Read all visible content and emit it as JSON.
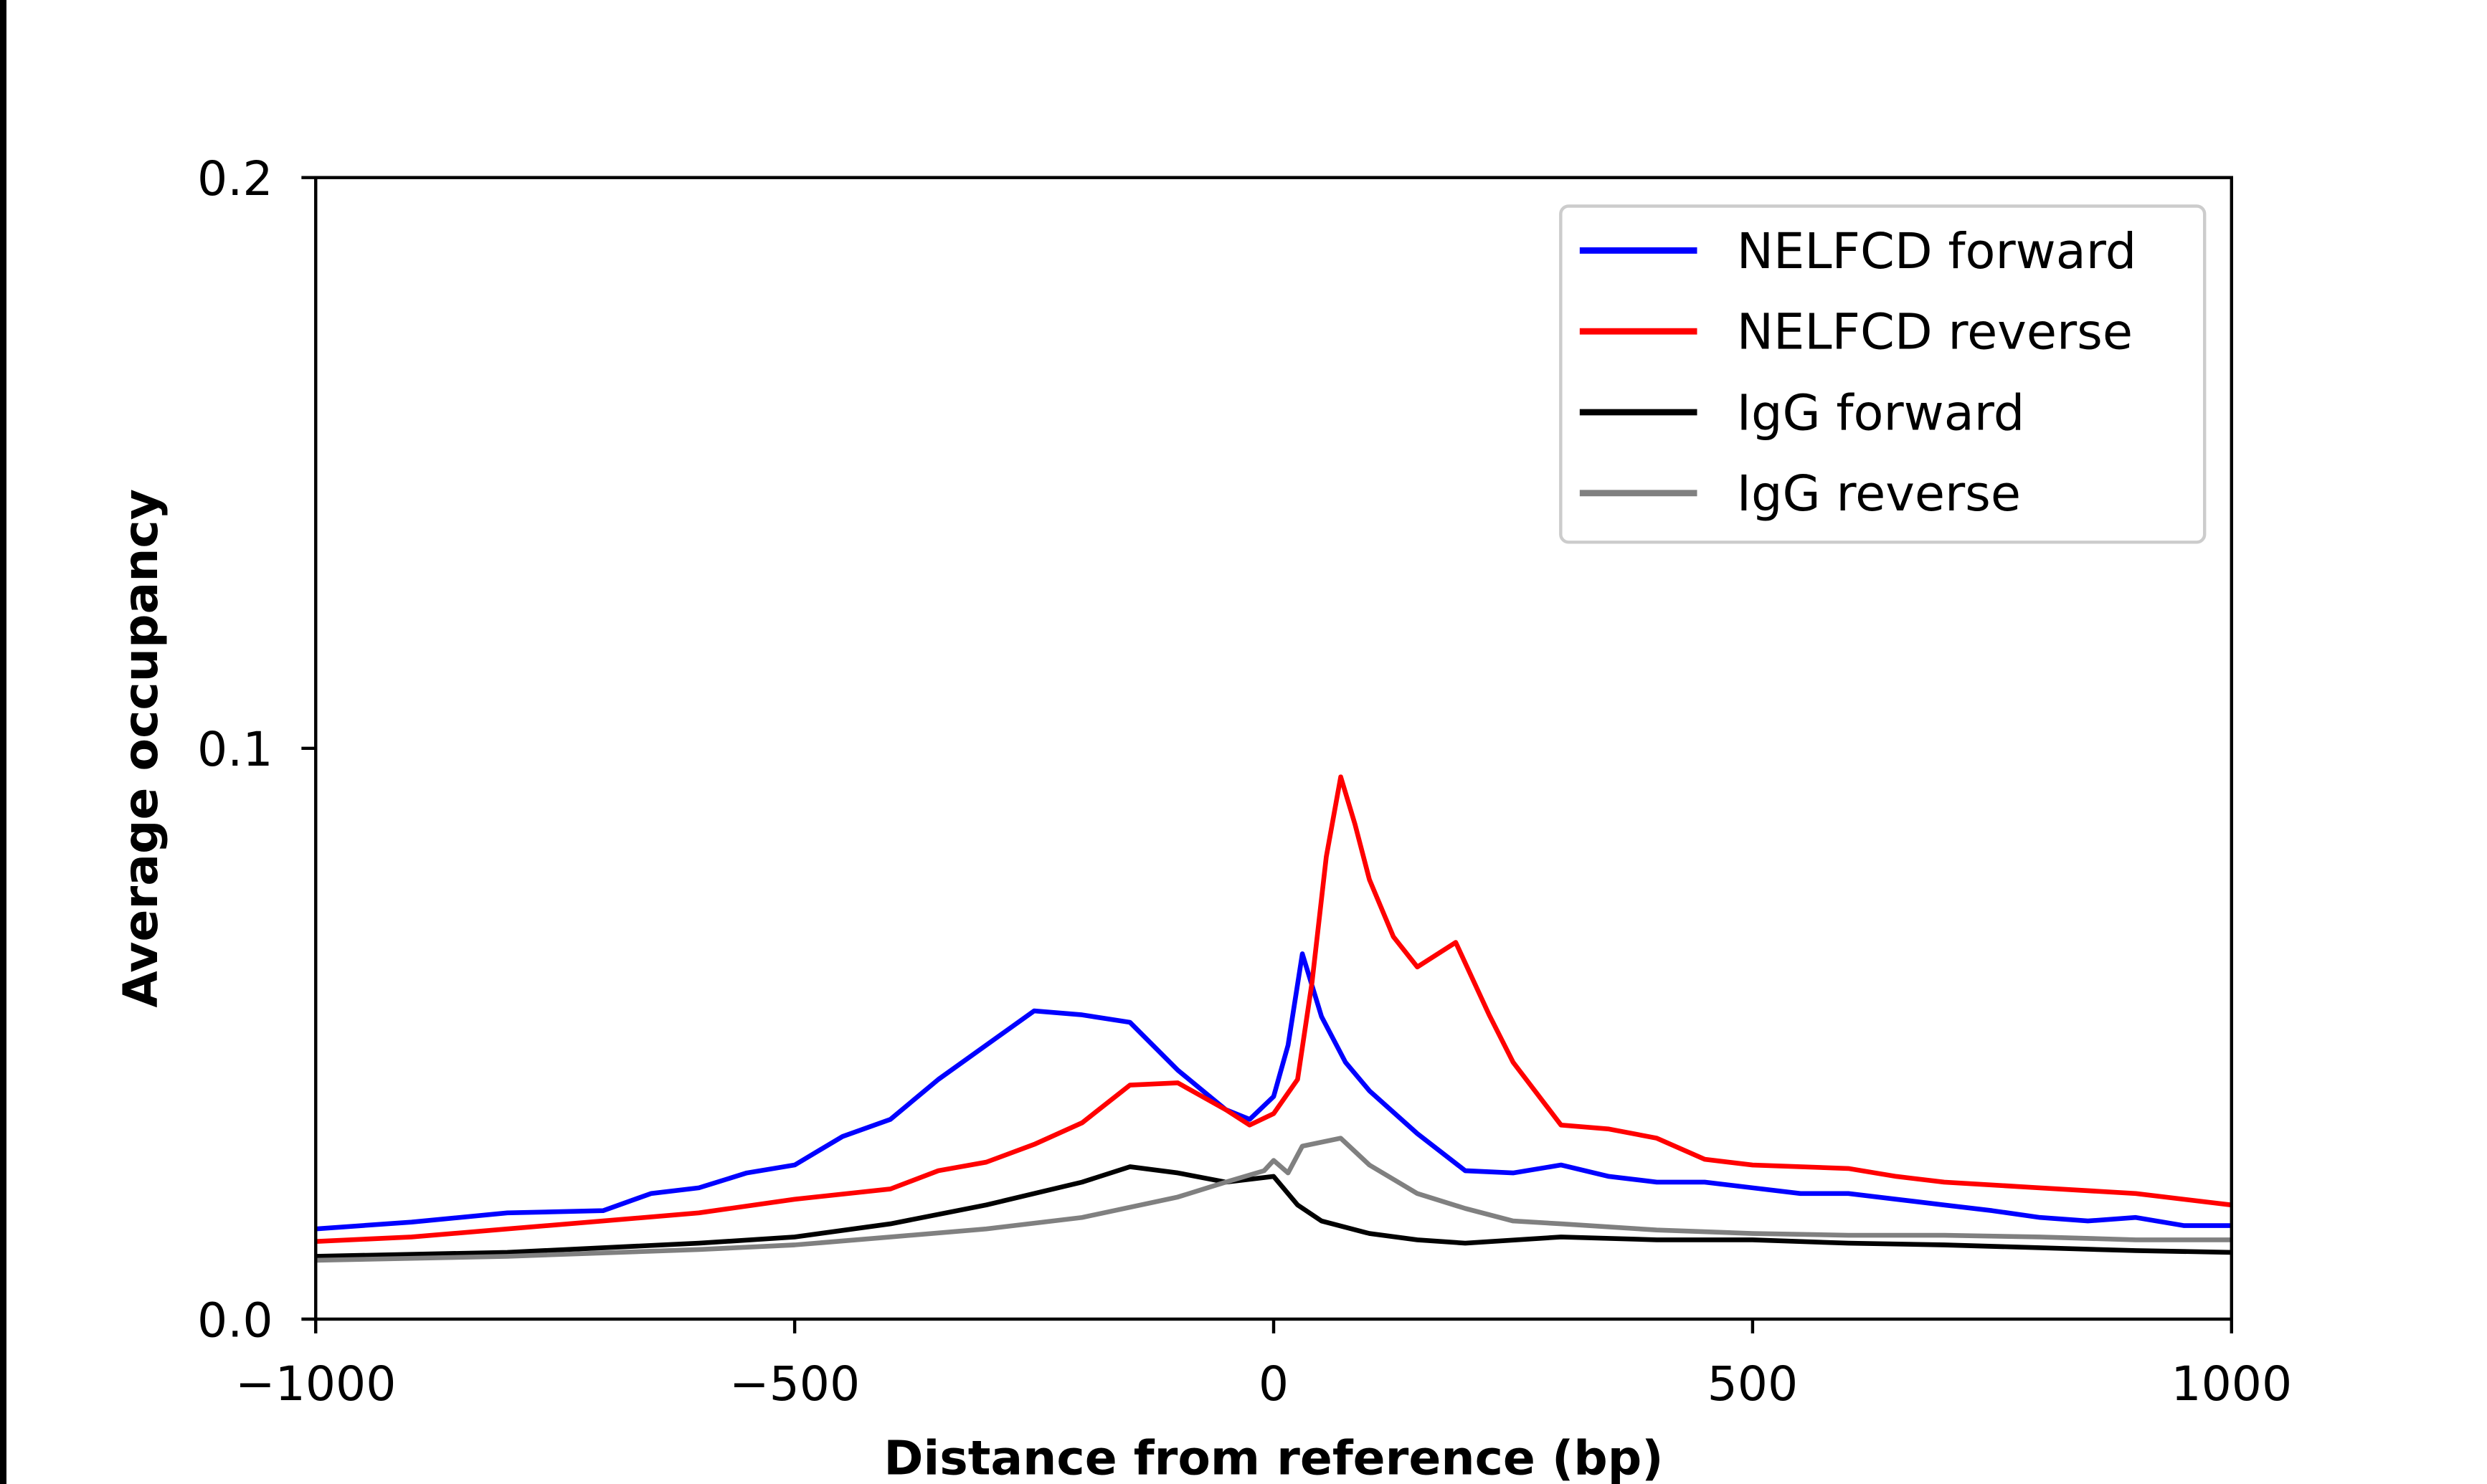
{
  "chart_data": {
    "type": "line",
    "title": "",
    "xlabel": "Distance from reference (bp)",
    "ylabel": "Average occupancy",
    "xlim": [
      -1000,
      1000
    ],
    "ylim": [
      0,
      0.2
    ],
    "xticks": [
      -1000,
      -500,
      0,
      500,
      1000
    ],
    "xtick_labels": [
      "−1000",
      "−500",
      "0",
      "500",
      "1000"
    ],
    "yticks": [
      0,
      0.1,
      0.2
    ],
    "ytick_labels": [
      "0.0",
      "0.1",
      "0.2"
    ],
    "grid": false,
    "legend_placement": "top-right",
    "series": [
      {
        "name": "NELFCD forward",
        "color": "#0000ff",
        "x": [
          -1000,
          -900,
          -800,
          -700,
          -650,
          -600,
          -550,
          -500,
          -450,
          -400,
          -350,
          -300,
          -250,
          -200,
          -150,
          -100,
          -50,
          -25,
          0,
          15,
          30,
          50,
          75,
          100,
          150,
          200,
          250,
          300,
          350,
          400,
          450,
          500,
          550,
          600,
          650,
          700,
          750,
          800,
          850,
          900,
          950,
          1000
        ],
        "y": [
          0.0158,
          0.017,
          0.0186,
          0.019,
          0.022,
          0.023,
          0.0256,
          0.027,
          0.032,
          0.035,
          0.042,
          0.048,
          0.054,
          0.0533,
          0.052,
          0.0436,
          0.0367,
          0.035,
          0.039,
          0.048,
          0.064,
          0.053,
          0.045,
          0.04,
          0.0325,
          0.026,
          0.0256,
          0.027,
          0.025,
          0.024,
          0.024,
          0.023,
          0.022,
          0.022,
          0.021,
          0.02,
          0.019,
          0.0178,
          0.0172,
          0.0178,
          0.0164,
          0.0164
        ]
      },
      {
        "name": "NELFCD reverse",
        "color": "#ff0000",
        "x": [
          -1000,
          -900,
          -800,
          -700,
          -600,
          -500,
          -400,
          -350,
          -300,
          -250,
          -200,
          -150,
          -100,
          -50,
          -25,
          0,
          25,
          40,
          55,
          70,
          85,
          100,
          125,
          150,
          190,
          225,
          250,
          300,
          350,
          400,
          450,
          500,
          600,
          650,
          700,
          800,
          900,
          1000
        ],
        "y": [
          0.0136,
          0.0144,
          0.0158,
          0.0172,
          0.0186,
          0.021,
          0.0228,
          0.026,
          0.0275,
          0.0306,
          0.0344,
          0.041,
          0.0414,
          0.0367,
          0.034,
          0.036,
          0.042,
          0.059,
          0.081,
          0.095,
          0.0867,
          0.077,
          0.067,
          0.0617,
          0.066,
          0.0533,
          0.045,
          0.034,
          0.0333,
          0.0317,
          0.028,
          0.027,
          0.0264,
          0.025,
          0.024,
          0.023,
          0.022,
          0.02
        ]
      },
      {
        "name": "IgG forward",
        "color": "#000000",
        "x": [
          -1000,
          -800,
          -600,
          -500,
          -400,
          -300,
          -200,
          -150,
          -100,
          -50,
          0,
          25,
          50,
          100,
          150,
          200,
          300,
          400,
          500,
          600,
          700,
          800,
          900,
          1000
        ],
        "y": [
          0.011,
          0.0117,
          0.0133,
          0.0144,
          0.0167,
          0.02,
          0.024,
          0.0267,
          0.0256,
          0.024,
          0.025,
          0.02,
          0.0172,
          0.015,
          0.0139,
          0.0133,
          0.0144,
          0.0139,
          0.0139,
          0.0133,
          0.013,
          0.0125,
          0.012,
          0.0117
        ]
      },
      {
        "name": "IgG reverse",
        "color": "#808080",
        "x": [
          -1000,
          -800,
          -600,
          -500,
          -400,
          -300,
          -200,
          -100,
          -50,
          -10,
          0,
          15,
          30,
          70,
          100,
          150,
          200,
          250,
          300,
          400,
          500,
          600,
          700,
          800,
          900,
          1000
        ],
        "y": [
          0.0103,
          0.011,
          0.0122,
          0.013,
          0.0144,
          0.0158,
          0.0178,
          0.0214,
          0.024,
          0.026,
          0.0278,
          0.0256,
          0.0303,
          0.0317,
          0.027,
          0.022,
          0.0194,
          0.0172,
          0.0167,
          0.0156,
          0.015,
          0.0147,
          0.0147,
          0.0144,
          0.0139,
          0.0139
        ]
      }
    ]
  }
}
